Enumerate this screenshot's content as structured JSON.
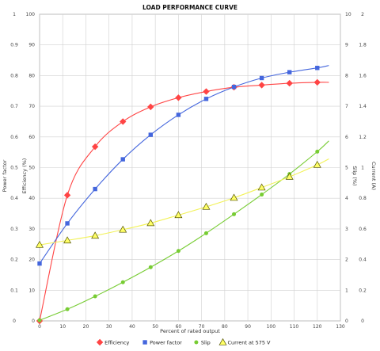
{
  "chart_data": {
    "type": "line",
    "title": "LOAD PERFORMANCE CURVE",
    "xlabel": "Percent of rated output",
    "x_ticks": [
      0,
      10,
      20,
      30,
      40,
      50,
      60,
      70,
      80,
      90,
      100,
      110,
      120,
      130
    ],
    "xlim": [
      0,
      130
    ],
    "grid": true,
    "legend_position": "bottom-center",
    "axes": {
      "left_outer": {
        "label": "Power factor",
        "lim": [
          0,
          1
        ],
        "ticks": [
          "0",
          "0.1",
          "0.2",
          "0.3",
          "0.4",
          "0.5",
          "0.6",
          "0.7",
          "0.8",
          "0.9",
          "1"
        ]
      },
      "left_inner": {
        "label": "Efficiency (%)",
        "lim": [
          0,
          100
        ],
        "ticks": [
          "0",
          "10",
          "20",
          "30",
          "40",
          "50",
          "60",
          "70",
          "80",
          "90",
          "100"
        ]
      },
      "right_inner": {
        "label": "Slip (%)",
        "lim": [
          0,
          10
        ],
        "ticks": [
          "0",
          "1",
          "2",
          "3",
          "4",
          "5",
          "6",
          "7",
          "8",
          "9",
          "10"
        ]
      },
      "right_outer": {
        "label": "Current (A)",
        "lim": [
          0,
          2
        ],
        "ticks": [
          "0",
          "0.2",
          "0.4",
          "0.6",
          "0.8",
          "1",
          "1.2",
          "1.4",
          "1.6",
          "1.8",
          "2"
        ]
      }
    },
    "series": [
      {
        "name": "Efficiency",
        "axis": "left_inner",
        "color": "#ff4444",
        "marker": "diamond",
        "points": [
          [
            0,
            0
          ],
          [
            12,
            41
          ],
          [
            24,
            56.8
          ],
          [
            36,
            65
          ],
          [
            48,
            69.8
          ],
          [
            60,
            72.8
          ],
          [
            72,
            74.8
          ],
          [
            84,
            76.2
          ],
          [
            96,
            76.9
          ],
          [
            108,
            77.5
          ],
          [
            120,
            77.8
          ]
        ],
        "curve_end": [
          125,
          77.8
        ]
      },
      {
        "name": "Power factor",
        "axis": "left_outer",
        "color": "#4466dd",
        "marker": "square",
        "points": [
          [
            0,
            0.187
          ],
          [
            12,
            0.318
          ],
          [
            24,
            0.43
          ],
          [
            36,
            0.527
          ],
          [
            48,
            0.607
          ],
          [
            60,
            0.672
          ],
          [
            72,
            0.724
          ],
          [
            84,
            0.763
          ],
          [
            96,
            0.792
          ],
          [
            108,
            0.811
          ],
          [
            120,
            0.825
          ]
        ],
        "curve_end": [
          125,
          0.833
        ]
      },
      {
        "name": "Slip",
        "axis": "right_inner",
        "color": "#77cc33",
        "marker": "circle",
        "points": [
          [
            0,
            0.02
          ],
          [
            12,
            0.38
          ],
          [
            24,
            0.8
          ],
          [
            36,
            1.26
          ],
          [
            48,
            1.75
          ],
          [
            60,
            2.28
          ],
          [
            72,
            2.86
          ],
          [
            84,
            3.48
          ],
          [
            96,
            4.12
          ],
          [
            108,
            4.79
          ],
          [
            120,
            5.52
          ]
        ],
        "curve_end": [
          125,
          5.87
        ]
      },
      {
        "name": "Current at 575 V",
        "axis": "right_outer",
        "color": "#ffff66",
        "stroke": "#555500",
        "marker": "triangle",
        "points": [
          [
            0,
            0.496
          ],
          [
            12,
            0.525
          ],
          [
            24,
            0.556
          ],
          [
            36,
            0.595
          ],
          [
            48,
            0.638
          ],
          [
            60,
            0.69
          ],
          [
            72,
            0.744
          ],
          [
            84,
            0.803
          ],
          [
            96,
            0.87
          ],
          [
            108,
            0.94
          ],
          [
            120,
            1.018
          ]
        ],
        "curve_end": [
          125,
          1.057
        ]
      }
    ]
  }
}
